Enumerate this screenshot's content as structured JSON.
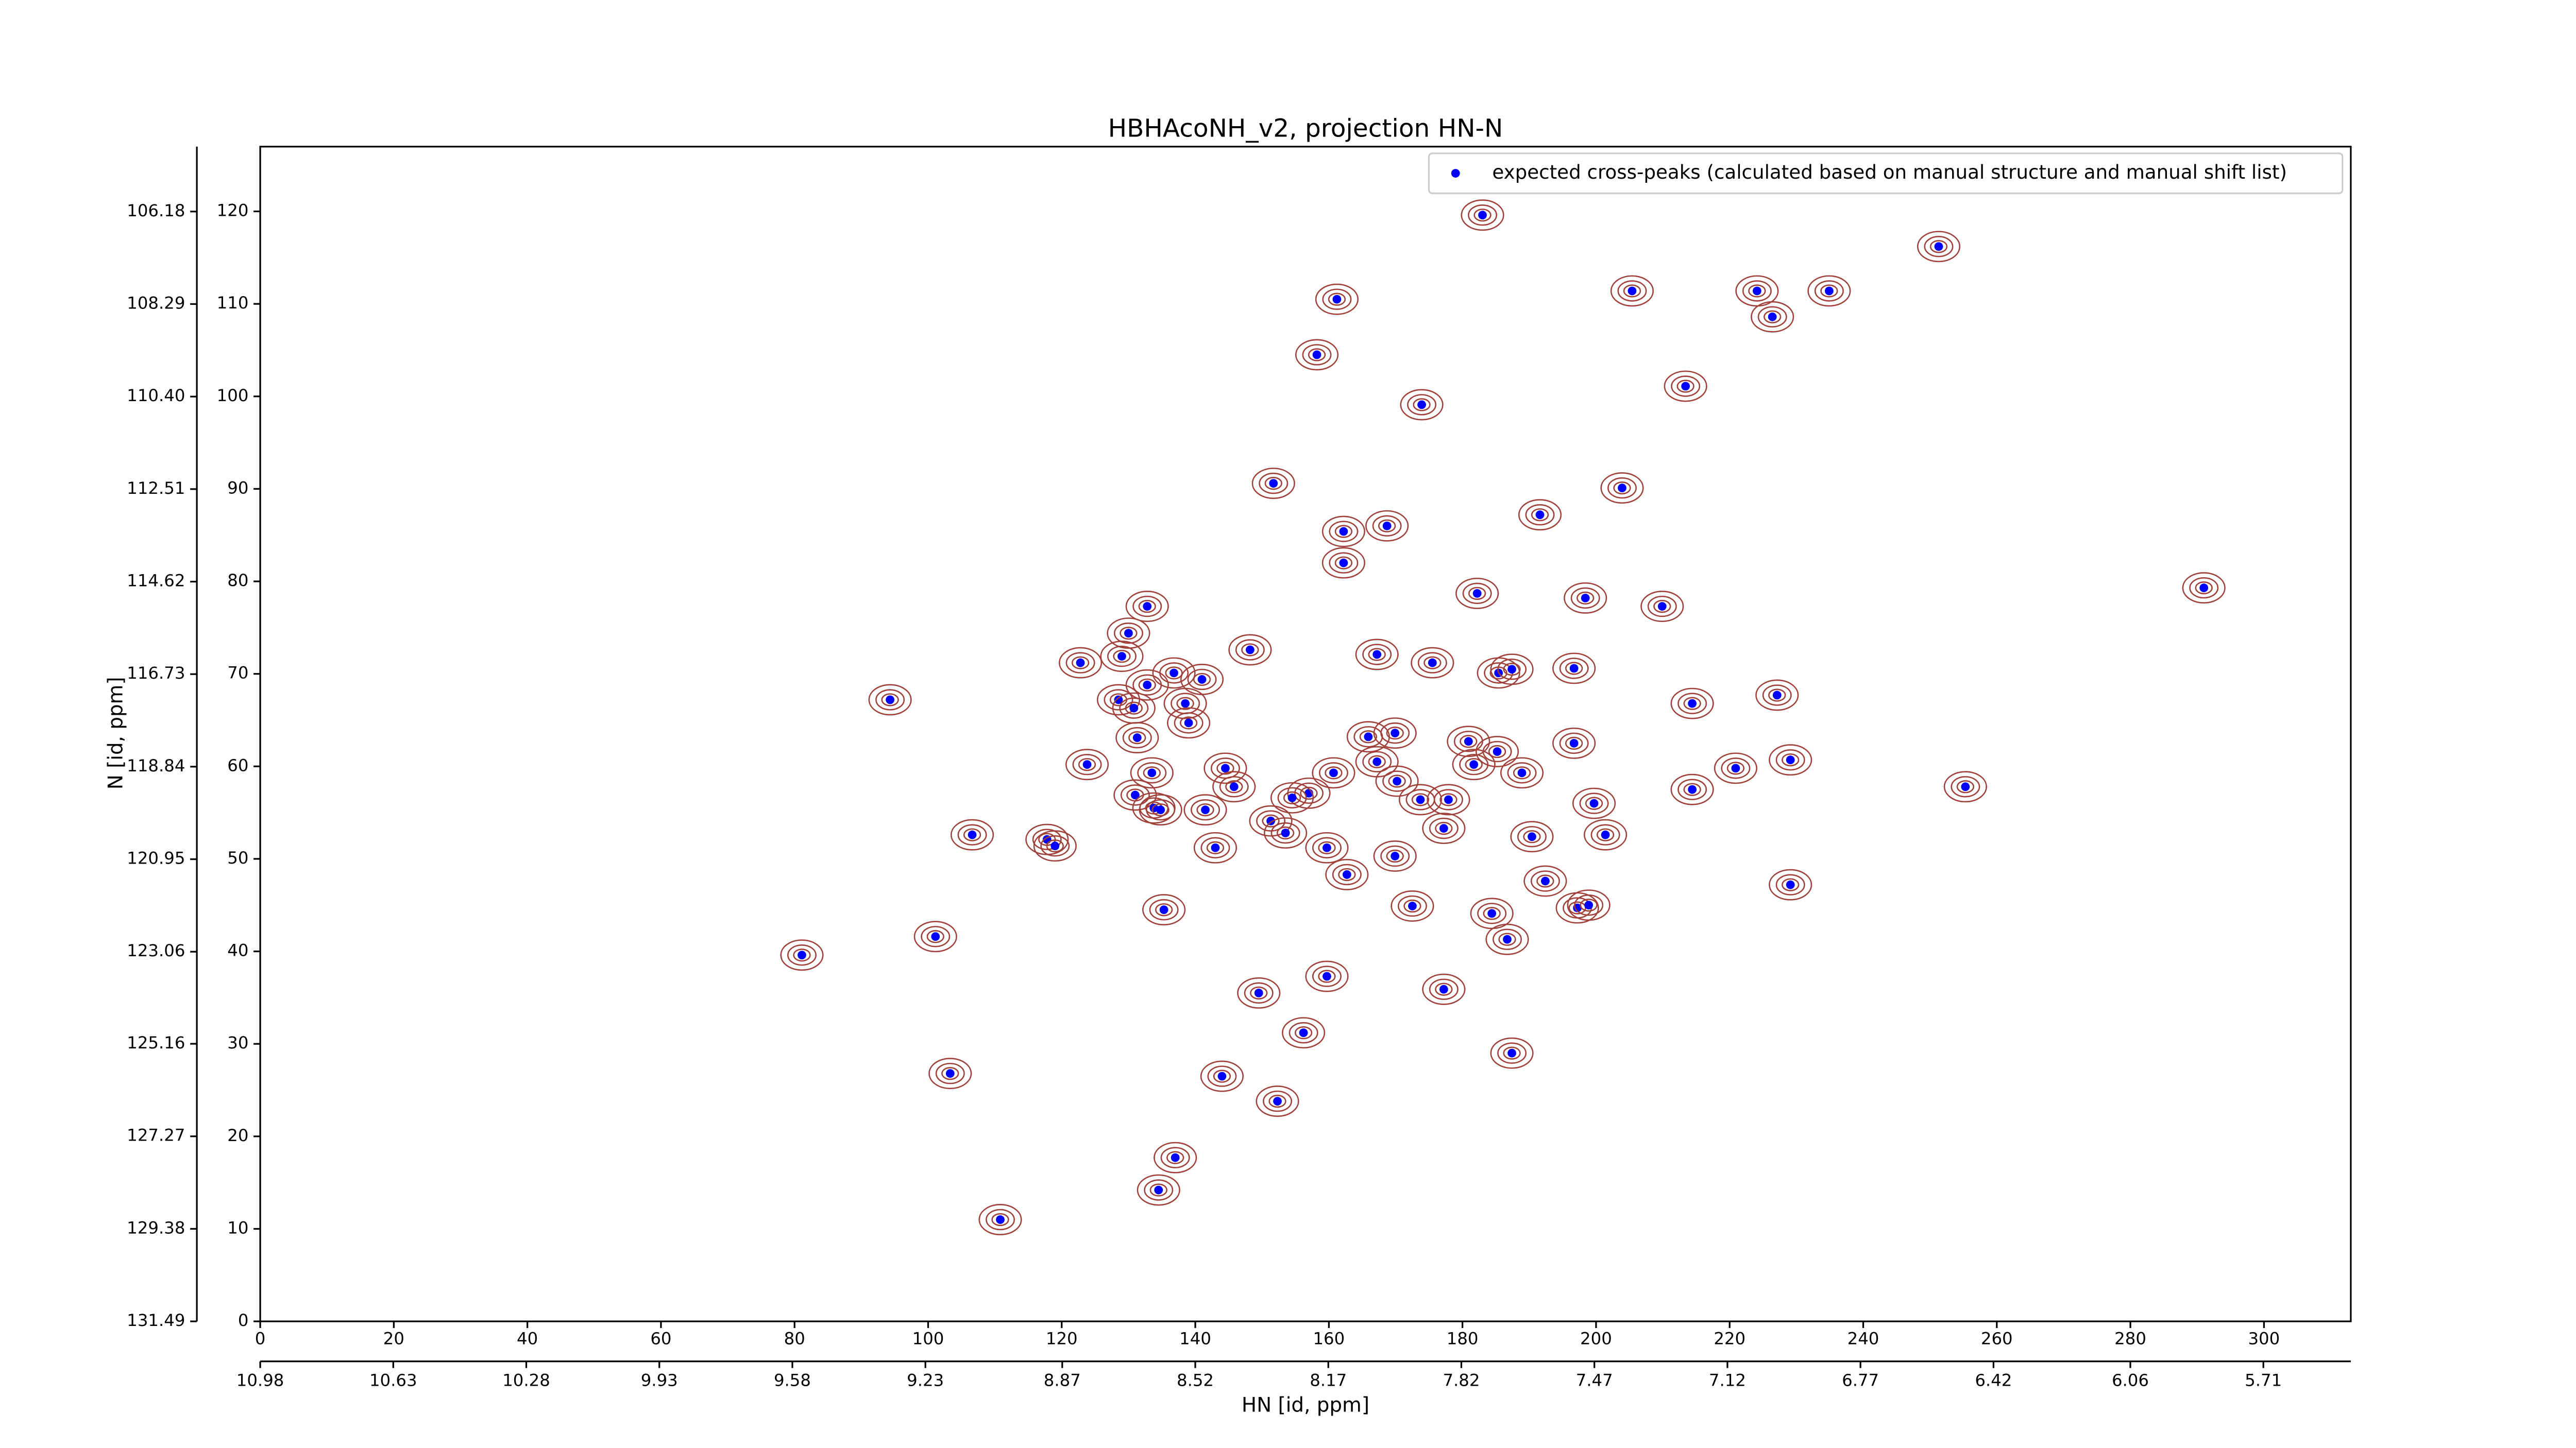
{
  "chart_data": {
    "type": "scatter",
    "title": "HBHAcoNH_v2, projection HN-N",
    "xlabel": "HN [id, ppm]",
    "ylabel": "N [id, ppm]",
    "xlim": [
      0,
      313
    ],
    "ylim": [
      0,
      127
    ],
    "xticks": [
      0,
      20,
      40,
      60,
      80,
      100,
      120,
      140,
      160,
      180,
      200,
      220,
      240,
      260,
      280,
      300
    ],
    "yticks": [
      0,
      10,
      20,
      30,
      40,
      50,
      60,
      70,
      80,
      90,
      100,
      110,
      120
    ],
    "x2lim": [
      10.98,
      5.48
    ],
    "x2ticks": [
      10.98,
      10.63,
      10.28,
      9.93,
      9.58,
      9.23,
      8.87,
      8.52,
      8.17,
      7.82,
      7.47,
      7.12,
      6.77,
      6.42,
      6.06,
      5.71
    ],
    "y2lim": [
      131.49,
      104.7
    ],
    "y2ticks": [
      131.49,
      129.38,
      127.27,
      125.16,
      123.06,
      120.95,
      118.84,
      116.73,
      114.62,
      112.51,
      {
        "value": 110.4,
        "label": "110.40"
      },
      108.29,
      106.18
    ],
    "legend": "upper right",
    "series": [
      {
        "name": "expected cross-peaks (calculated based on manual structure and manual shift list)",
        "color": "#0000ff",
        "x": [
          251.3,
          183.0,
          161.2,
          205.4,
          224.1,
          226.4,
          234.9,
          158.2,
          173.9,
          213.4,
          151.7,
          203.9,
          191.6,
          162.2,
          168.7,
          162.2,
          182.2,
          198.4,
          209.9,
          291.0,
          132.8,
          130.0,
          148.2,
          129.0,
          122.8,
          167.2,
          175.5,
          185.4,
          187.4,
          196.7,
          136.8,
          132.8,
          141.0,
          128.5,
          130.8,
          138.5,
          94.3,
          214.4,
          227.1,
          139.0,
          131.3,
          165.9,
          169.9,
          180.9,
          196.7,
          123.8,
          167.2,
          181.7,
          185.2,
          144.5,
          133.5,
          160.7,
          188.9,
          220.9,
          229.1,
          145.8,
          157.0,
          170.2,
          255.3,
          214.4,
          131.0,
          154.5,
          173.7,
          177.9,
          199.7,
          133.8,
          134.8,
          141.5,
          151.3,
          106.6,
          190.4,
          201.4,
          177.2,
          153.5,
          117.8,
          119.0,
          143.0,
          159.7,
          169.9,
          162.7,
          192.4,
          229.1,
          172.5,
          135.3,
          184.4,
          197.2,
          198.9,
          101.1,
          186.7,
          81.1,
          159.7,
          177.2,
          149.5,
          156.2,
          187.4,
          144.0,
          103.3,
          152.3,
          137.0,
          134.5,
          110.8
        ],
        "values": [
          116.2,
          119.6,
          110.5,
          111.4,
          111.4,
          108.6,
          111.4,
          104.5,
          99.1,
          101.1,
          90.6,
          90.1,
          87.2,
          85.4,
          86.0,
          82.0,
          78.7,
          78.2,
          77.3,
          79.3,
          77.3,
          74.4,
          72.6,
          71.9,
          71.2,
          72.1,
          71.2,
          70.1,
          70.5,
          70.6,
          70.1,
          68.8,
          69.4,
          67.2,
          66.3,
          66.8,
          67.2,
          66.8,
          67.7,
          64.7,
          63.1,
          63.2,
          63.6,
          62.7,
          62.5,
          60.2,
          60.5,
          60.2,
          61.6,
          59.8,
          59.3,
          59.3,
          59.3,
          59.8,
          60.7,
          57.8,
          57.1,
          58.4,
          57.8,
          57.5,
          56.9,
          56.6,
          56.4,
          56.4,
          56.0,
          55.5,
          55.3,
          55.3,
          54.1,
          52.6,
          52.4,
          52.6,
          53.3,
          52.8,
          52.1,
          51.4,
          51.2,
          51.2,
          50.3,
          48.3,
          47.6,
          47.2,
          44.9,
          44.5,
          44.1,
          44.7,
          45.0,
          41.6,
          41.3,
          39.6,
          37.3,
          35.9,
          35.5,
          31.2,
          29.0,
          26.5,
          26.8,
          23.8,
          17.7,
          14.2,
          11.0
        ]
      }
    ]
  }
}
